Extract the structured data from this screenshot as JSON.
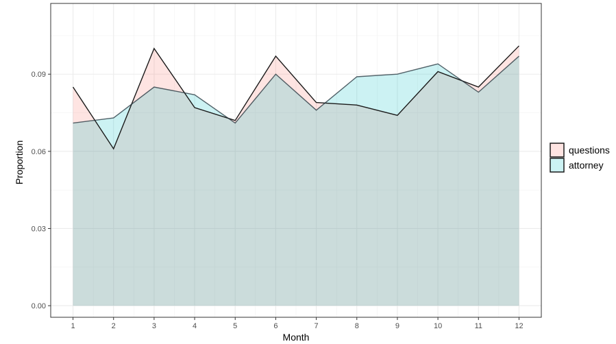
{
  "chart_data": {
    "type": "area",
    "xlabel": "Month",
    "ylabel": "Proportion",
    "x": [
      1,
      2,
      3,
      4,
      5,
      6,
      7,
      8,
      9,
      10,
      11,
      12
    ],
    "xticks": [
      "1",
      "2",
      "3",
      "4",
      "5",
      "6",
      "7",
      "8",
      "9",
      "10",
      "11",
      "12"
    ],
    "xlim": [
      0.45,
      12.55
    ],
    "ylim": [
      -0.0045,
      0.1175
    ],
    "yticks": [
      "0.00",
      "0.03",
      "0.06",
      "0.09"
    ],
    "ytick_values": [
      0.0,
      0.03,
      0.06,
      0.09
    ],
    "grid": true,
    "legend_position": "right",
    "series": [
      {
        "name": "questions",
        "color": "#F8766D",
        "values": [
          0.085,
          0.061,
          0.1,
          0.077,
          0.072,
          0.097,
          0.079,
          0.078,
          0.074,
          0.091,
          0.085,
          0.101
        ]
      },
      {
        "name": "attorney",
        "color": "#00BFC4",
        "values": [
          0.071,
          0.073,
          0.085,
          0.082,
          0.071,
          0.09,
          0.076,
          0.089,
          0.09,
          0.094,
          0.083,
          0.097
        ]
      }
    ]
  }
}
